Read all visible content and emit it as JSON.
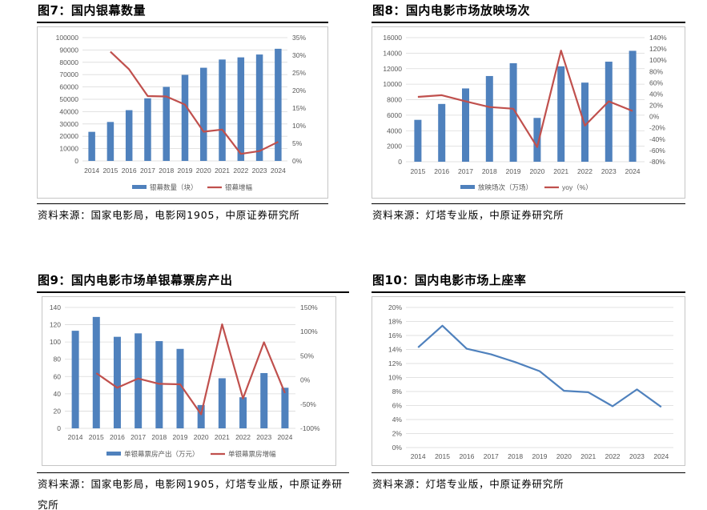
{
  "colors": {
    "bar": "#4f81bd",
    "line": "#c0504d",
    "line_blue": "#4f81bd",
    "grid": "#d9d9d9"
  },
  "panels": [
    {
      "title": "图7：国内银幕数量",
      "source": "资料来源：国家电影局，电影网1905，中原证券研究所"
    },
    {
      "title": "图8：国内电影市场放映场次",
      "source": "资料来源：灯塔专业版，中原证券研究所"
    },
    {
      "title": "图9：国内电影市场单银幕票房产出",
      "source": "资料来源：国家电影局，电影网1905，灯塔专业版，中原证券研究所"
    },
    {
      "title": "图10：国内电影市场上座率",
      "source": "资料来源：灯塔专业版，中原证券研究所"
    }
  ],
  "chart_data": [
    {
      "type": "bar",
      "categories": [
        "2014",
        "2015",
        "2016",
        "2017",
        "2018",
        "2019",
        "2020",
        "2021",
        "2022",
        "2023",
        "2024"
      ],
      "series": [
        {
          "name": "银幕数量（块）",
          "type": "bar",
          "axis": "left",
          "values": [
            23600,
            31600,
            41179,
            50776,
            60079,
            69787,
            75581,
            82248,
            84000,
            86310,
            90968
          ]
        },
        {
          "name": "银幕增幅",
          "type": "line",
          "axis": "right",
          "values": [
            null,
            31,
            26,
            18.4,
            18.3,
            16,
            8.3,
            8.9,
            2,
            2.8,
            5.4
          ]
        }
      ],
      "y_left": {
        "ticks": [
          "0",
          "10000",
          "20000",
          "30000",
          "40000",
          "50000",
          "60000",
          "70000",
          "80000",
          "90000",
          "100000"
        ],
        "min": 0,
        "max": 100000
      },
      "y_right": {
        "ticks": [
          "0%",
          "5%",
          "10%",
          "15%",
          "20%",
          "25%",
          "30%",
          "35%"
        ],
        "min": 0,
        "max": 35
      }
    },
    {
      "type": "bar",
      "categories": [
        "2015",
        "2016",
        "2017",
        "2018",
        "2019",
        "2020",
        "2021",
        "2022",
        "2023",
        "2024"
      ],
      "series": [
        {
          "name": "放映场次（万场）",
          "type": "bar",
          "axis": "left",
          "values": [
            5400,
            7450,
            9450,
            11050,
            12700,
            5650,
            12300,
            10200,
            12900,
            14300
          ]
        },
        {
          "name": "yoy（%）",
          "type": "line",
          "axis": "right",
          "values": [
            35,
            38,
            27,
            17,
            14,
            -54,
            117,
            -16,
            27,
            10
          ]
        }
      ],
      "y_left": {
        "ticks": [
          "0",
          "2000",
          "4000",
          "6000",
          "8000",
          "10000",
          "12000",
          "14000",
          "16000"
        ],
        "min": 0,
        "max": 16000
      },
      "y_right": {
        "ticks": [
          "-80%",
          "-60%",
          "-40%",
          "-20%",
          "0%",
          "20%",
          "40%",
          "60%",
          "80%",
          "100%",
          "120%",
          "140%"
        ],
        "min": -80,
        "max": 140
      }
    },
    {
      "type": "bar",
      "categories": [
        "2014",
        "2015",
        "2016",
        "2017",
        "2018",
        "2019",
        "2020",
        "2021",
        "2022",
        "2023",
        "2024"
      ],
      "series": [
        {
          "name": "单银幕票房产出（万元）",
          "type": "bar",
          "axis": "left",
          "values": [
            113,
            129,
            106,
            110,
            101,
            92,
            27,
            58,
            36,
            64,
            47
          ]
        },
        {
          "name": "单银幕票房增幅",
          "type": "line",
          "axis": "right",
          "values": [
            null,
            14,
            -16,
            3,
            -8,
            -9,
            -71,
            115,
            -38,
            78,
            -27
          ]
        }
      ],
      "y_left": {
        "ticks": [
          "0",
          "20",
          "40",
          "60",
          "80",
          "100",
          "120",
          "140"
        ],
        "min": 0,
        "max": 140
      },
      "y_right": {
        "ticks": [
          "-100%",
          "-50%",
          "0%",
          "50%",
          "100%",
          "150%"
        ],
        "min": -100,
        "max": 150
      }
    },
    {
      "type": "line",
      "categories": [
        "2014",
        "2015",
        "2016",
        "2017",
        "2018",
        "2019",
        "2020",
        "2021",
        "2022",
        "2023",
        "2024"
      ],
      "series": [
        {
          "name": "",
          "type": "line",
          "axis": "left",
          "values": [
            14.3,
            17.4,
            14.1,
            13.3,
            12.2,
            10.9,
            8.1,
            7.9,
            5.9,
            8.3,
            5.8
          ]
        }
      ],
      "y_left": {
        "ticks": [
          "0%",
          "2%",
          "4%",
          "6%",
          "8%",
          "10%",
          "12%",
          "14%",
          "16%",
          "18%",
          "20%"
        ],
        "min": 0,
        "max": 20
      }
    }
  ]
}
